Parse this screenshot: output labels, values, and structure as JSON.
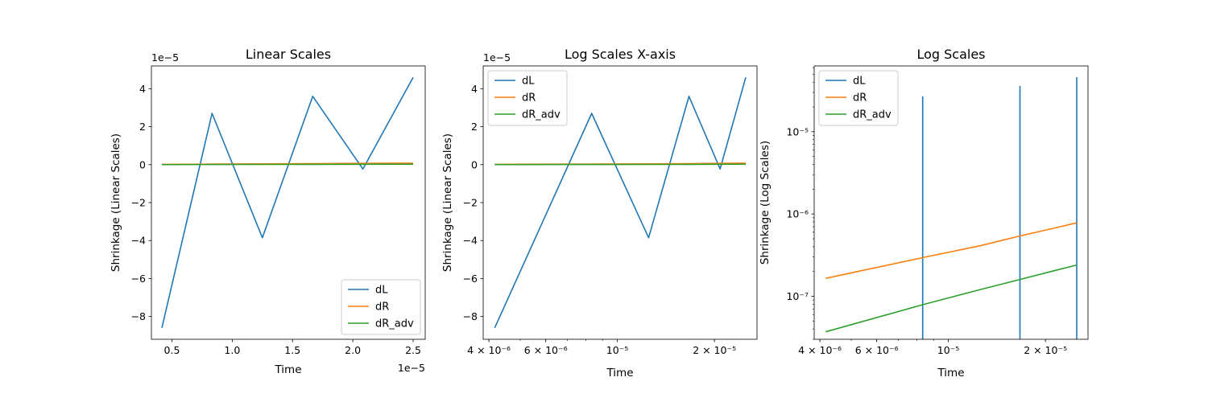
{
  "chart_data": [
    {
      "type": "line",
      "title": "Linear Scales",
      "xlabel": "Time",
      "ylabel": "Shrinkage (Linear Scales)",
      "xscale": "linear",
      "yscale": "linear",
      "xlim": [
        3.3e-06,
        2.6e-05
      ],
      "ylim": [
        -9.2e-05,
        5.2e-05
      ],
      "x_ticks": [
        "0.5",
        "1.0",
        "1.5",
        "2.0",
        "2.5"
      ],
      "x_offset_text": "1e−5",
      "y_ticks": [
        "−8",
        "−6",
        "−4",
        "−2",
        "0",
        "2",
        "4"
      ],
      "y_offset_text": "1e−5",
      "legend_position": "lower right",
      "series": [
        {
          "name": "dL",
          "color": "#1f77b4",
          "x": [
            4.17e-06,
            8.33e-06,
            1.25e-05,
            1.667e-05,
            2.083e-05,
            2.5e-05
          ],
          "y": [
            -8.6e-05,
            2.7e-05,
            -3.85e-05,
            3.6e-05,
            -2.3e-06,
            4.6e-05
          ]
        },
        {
          "name": "dR",
          "color": "#ff7f0e",
          "x": [
            4.17e-06,
            8.33e-06,
            1.25e-05,
            1.667e-05,
            2.083e-05,
            2.5e-05
          ],
          "y": [
            1.65e-07,
            2.95e-07,
            4.1e-07,
            5.4e-07,
            6.6e-07,
            7.8e-07
          ]
        },
        {
          "name": "dR_adv",
          "color": "#2ca02c",
          "x": [
            4.17e-06,
            8.33e-06,
            1.25e-05,
            1.667e-05,
            2.083e-05,
            2.5e-05
          ],
          "y": [
            3.7e-08,
            7.9e-08,
            1.2e-07,
            1.6e-07,
            2e-07,
            2.4e-07
          ]
        }
      ]
    },
    {
      "type": "line",
      "title": "Log Scales X-axis",
      "xlabel": "Time",
      "ylabel": "Shrinkage (Linear Scales)",
      "xscale": "log",
      "yscale": "linear",
      "xlim": [
        3.84e-06,
        2.71e-05
      ],
      "ylim": [
        -9.2e-05,
        5.2e-05
      ],
      "x_ticks": [
        "4 × 10⁻⁶",
        "6 × 10⁻⁶",
        "10⁻⁵",
        "2 × 10⁻⁵"
      ],
      "y_ticks": [
        "−8",
        "−6",
        "−4",
        "−2",
        "0",
        "2",
        "4"
      ],
      "y_offset_text": "1e−5",
      "legend_position": "upper left",
      "series": [
        {
          "name": "dL",
          "color": "#1f77b4",
          "x": [
            4.17e-06,
            8.33e-06,
            1.25e-05,
            1.667e-05,
            2.083e-05,
            2.5e-05
          ],
          "y": [
            -8.6e-05,
            2.7e-05,
            -3.85e-05,
            3.6e-05,
            -2.3e-06,
            4.6e-05
          ]
        },
        {
          "name": "dR",
          "color": "#ff7f0e",
          "x": [
            4.17e-06,
            8.33e-06,
            1.25e-05,
            1.667e-05,
            2.083e-05,
            2.5e-05
          ],
          "y": [
            1.65e-07,
            2.95e-07,
            4.1e-07,
            5.4e-07,
            6.6e-07,
            7.8e-07
          ]
        },
        {
          "name": "dR_adv",
          "color": "#2ca02c",
          "x": [
            4.17e-06,
            8.33e-06,
            1.25e-05,
            1.667e-05,
            2.083e-05,
            2.5e-05
          ],
          "y": [
            3.7e-08,
            7.9e-08,
            1.2e-07,
            1.6e-07,
            2e-07,
            2.4e-07
          ]
        }
      ]
    },
    {
      "type": "line",
      "title": "Log Scales",
      "xlabel": "Time",
      "ylabel": "Shrinkage (Log Scales)",
      "xscale": "log",
      "yscale": "log",
      "xlim": [
        3.84e-06,
        2.71e-05
      ],
      "ylim": [
        3e-08,
        6.3e-05
      ],
      "x_ticks": [
        "4 × 10⁻⁶",
        "6 × 10⁻⁶",
        "10⁻⁵",
        "2 × 10⁻⁵"
      ],
      "y_ticks": [
        "10⁻⁷",
        "10⁻⁶",
        "10⁻⁵"
      ],
      "legend_position": "upper left",
      "series": [
        {
          "name": "dL",
          "color": "#1f77b4",
          "x": [
            8.33e-06,
            8.33e-06,
            1.667e-05,
            1.667e-05,
            2.5e-05,
            2.5e-05
          ],
          "y": [
            2.7e-05,
            3e-08,
            3.6e-05,
            3e-08,
            4.6e-05,
            3e-08
          ],
          "segments": [
            [
              0,
              1
            ],
            [
              2,
              3
            ],
            [
              4,
              5
            ]
          ]
        },
        {
          "name": "dR",
          "color": "#ff7f0e",
          "x": [
            4.17e-06,
            8.33e-06,
            1.25e-05,
            1.667e-05,
            2.083e-05,
            2.5e-05
          ],
          "y": [
            1.65e-07,
            2.95e-07,
            4.1e-07,
            5.4e-07,
            6.6e-07,
            7.8e-07
          ]
        },
        {
          "name": "dR_adv",
          "color": "#2ca02c",
          "x": [
            4.17e-06,
            8.33e-06,
            1.25e-05,
            1.667e-05,
            2.083e-05,
            2.5e-05
          ],
          "y": [
            3.7e-08,
            7.9e-08,
            1.2e-07,
            1.6e-07,
            2e-07,
            2.4e-07
          ]
        }
      ]
    }
  ]
}
